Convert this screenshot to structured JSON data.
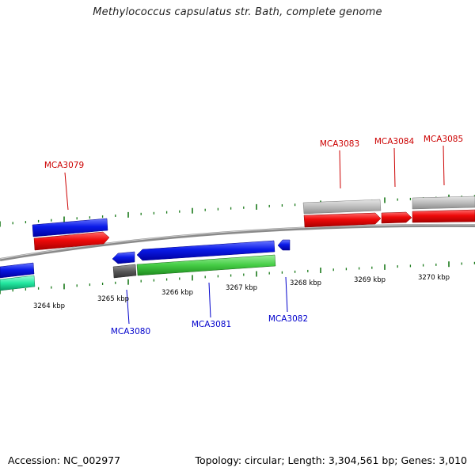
{
  "title": "Methylococcus capsulatus str. Bath, complete genome",
  "footer": {
    "accession_label": "Accession:",
    "accession": "NC_002977",
    "topology_label": "Topology:",
    "topology": "circular",
    "length_label": "Length:",
    "length": "3,304,561 bp",
    "genes_label": "Genes:",
    "genes": "3,010"
  },
  "colors": {
    "forward_gene": "#e8000a",
    "reverse_gene": "#0a1ae8",
    "forward_label": "#cc0000",
    "reverse_label": "#0000cc",
    "pseudo_gene": "#b8b8b8",
    "dark_gene": "#5a5a5a",
    "rna_gene": "#3fd03f",
    "teal_gene": "#22e8a0",
    "backbone": "#888888",
    "tick": "#1a7a1a"
  },
  "kbp_ticks": [
    "3264 kbp",
    "3265 kbp",
    "3266 kbp",
    "3267 kbp",
    "3268 kbp",
    "3269 kbp",
    "3270 kbp"
  ],
  "gene_labels": {
    "forward": [
      "MCA3079",
      "MCA3083",
      "MCA3084",
      "MCA3085"
    ],
    "reverse": [
      "MCA3080",
      "MCA3081",
      "MCA3082"
    ]
  }
}
